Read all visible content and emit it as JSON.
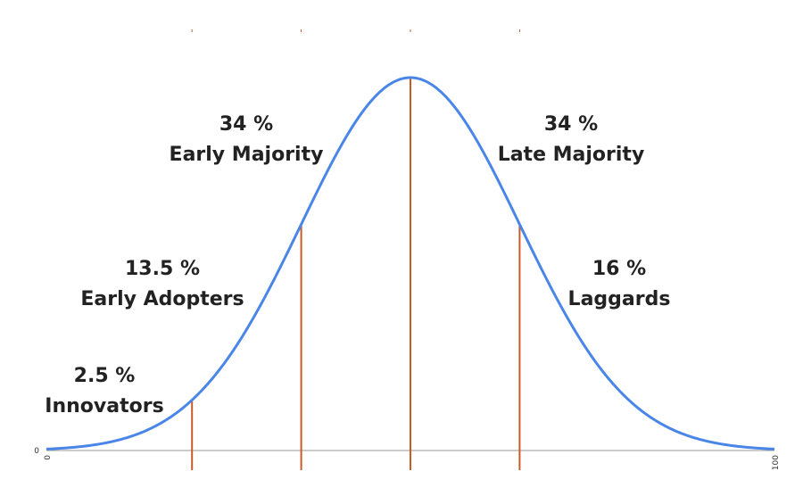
{
  "chart_data": {
    "type": "area",
    "title": "",
    "xlabel": "",
    "ylabel": "",
    "xlim": [
      0,
      100
    ],
    "ylim": [
      0,
      1
    ],
    "grid": false,
    "curve": {
      "distribution": "normal",
      "mean": 50,
      "std_dev": 15,
      "color": "#4a86e8"
    },
    "divider_color": "#cc5a28",
    "x_tick_labels": [
      {
        "x": 0,
        "label": "0"
      },
      {
        "x": 100,
        "label": "100"
      }
    ],
    "y_tick_labels": [
      {
        "y": 0,
        "label": "0"
      }
    ],
    "dividers": [
      {
        "x": 20
      },
      {
        "x": 35
      },
      {
        "x": 50
      },
      {
        "x": 65
      }
    ],
    "segments": [
      {
        "percent_label": "2.5 %",
        "name": "Innovators",
        "value": 2.5
      },
      {
        "percent_label": "13.5 %",
        "name": "Early Adopters",
        "value": 13.5
      },
      {
        "percent_label": "34 %",
        "name": "Early Majority",
        "value": 34
      },
      {
        "percent_label": "34 %",
        "name": "Late Majority",
        "value": 34
      },
      {
        "percent_label": "16 %",
        "name": "Laggards",
        "value": 16
      }
    ]
  }
}
